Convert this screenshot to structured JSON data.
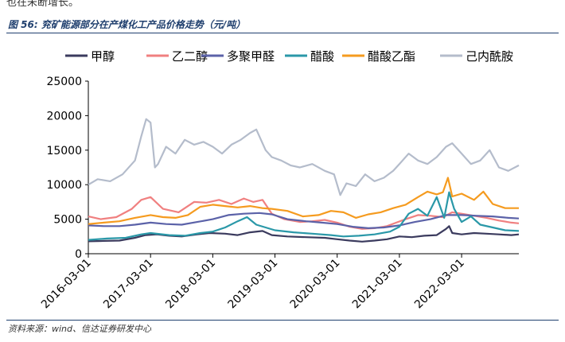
{
  "header": {
    "top_text": "也在未断增长。",
    "figure_title": "图 56:  兖矿能源部分在产煤化工产品价格走势（元/吨）",
    "source": "资料来源：wind、信达证券研发中心"
  },
  "chart_data": {
    "type": "line",
    "title": "兖矿能源部分在产煤化工产品价格走势（元/吨）",
    "xlabel": "",
    "ylabel": "",
    "ylim": [
      0,
      25000
    ],
    "yticks": [
      0,
      5000,
      10000,
      15000,
      20000,
      25000
    ],
    "ytick_labels": [
      "0",
      "5000",
      "10000",
      "15000",
      "20000",
      "25000"
    ],
    "xlim": [
      2016.0,
      2022.92
    ],
    "xtick_labels": [
      "2016-03-01",
      "2017-03-01",
      "2018-03-01",
      "2019-03-01",
      "2020-03-01",
      "2021-03-01",
      "2022-03-01"
    ],
    "xtick_values": [
      2016.0,
      2017.0,
      2018.0,
      2019.0,
      2020.0,
      2021.0,
      2022.0
    ],
    "legend_position": "top",
    "series": [
      {
        "name": "甲醇",
        "color": "#3b3b5e",
        "x": [
          2016.0,
          2016.25,
          2016.5,
          2016.75,
          2016.92,
          2017.1,
          2017.3,
          2017.5,
          2017.75,
          2017.95,
          2018.2,
          2018.4,
          2018.6,
          2018.8,
          2018.95,
          2019.2,
          2019.5,
          2019.8,
          2020.0,
          2020.2,
          2020.4,
          2020.6,
          2020.8,
          2021.0,
          2021.2,
          2021.4,
          2021.6,
          2021.75,
          2021.8,
          2021.85,
          2022.0,
          2022.2,
          2022.4,
          2022.6,
          2022.8,
          2022.92
        ],
        "y": [
          1800,
          1850,
          1900,
          2300,
          2700,
          2800,
          2600,
          2500,
          2800,
          3000,
          2900,
          2700,
          3100,
          3300,
          2700,
          2500,
          2400,
          2300,
          2100,
          1900,
          1750,
          1900,
          2100,
          2500,
          2400,
          2600,
          2700,
          3600,
          4000,
          3000,
          2800,
          3000,
          2900,
          2800,
          2700,
          2800
        ]
      },
      {
        "name": "乙二醇",
        "color": "#f08080",
        "x": [
          2016.0,
          2016.2,
          2016.45,
          2016.7,
          2016.85,
          2017.0,
          2017.2,
          2017.45,
          2017.7,
          2017.9,
          2018.1,
          2018.3,
          2018.5,
          2018.65,
          2018.8,
          2018.95,
          2019.15,
          2019.4,
          2019.6,
          2019.8,
          2020.0,
          2020.2,
          2020.4,
          2020.6,
          2020.8,
          2020.95,
          2021.1,
          2021.3,
          2021.5,
          2021.7,
          2021.85,
          2022.0,
          2022.2,
          2022.4,
          2022.6,
          2022.8,
          2022.92
        ],
        "y": [
          5400,
          5000,
          5300,
          6500,
          7800,
          8200,
          6500,
          6000,
          7500,
          7400,
          7800,
          7200,
          8000,
          7500,
          7800,
          5800,
          5000,
          4600,
          4700,
          4900,
          4500,
          3900,
          3600,
          3700,
          4000,
          4500,
          5000,
          5600,
          5500,
          5300,
          6000,
          5800,
          5500,
          5200,
          4800,
          4500,
          4400
        ]
      },
      {
        "name": "多聚甲醛",
        "color": "#5b62a8",
        "x": [
          2016.0,
          2016.25,
          2016.5,
          2016.75,
          2017.0,
          2017.25,
          2017.5,
          2017.75,
          2018.0,
          2018.25,
          2018.5,
          2018.75,
          2018.95,
          2019.2,
          2019.5,
          2019.75,
          2020.0,
          2020.25,
          2020.5,
          2020.75,
          2021.0,
          2021.25,
          2021.5,
          2021.75,
          2022.0,
          2022.25,
          2022.5,
          2022.75,
          2022.92
        ],
        "y": [
          4100,
          4000,
          4000,
          4200,
          4500,
          4300,
          4200,
          4600,
          5000,
          5600,
          5800,
          5900,
          5700,
          5000,
          4700,
          4500,
          4300,
          3900,
          3700,
          3800,
          4100,
          4600,
          5000,
          5600,
          5600,
          5500,
          5400,
          5200,
          5100
        ]
      },
      {
        "name": "醋酸",
        "color": "#2a98a8",
        "x": [
          2016.0,
          2016.3,
          2016.6,
          2016.85,
          2017.0,
          2017.3,
          2017.55,
          2017.8,
          2018.0,
          2018.2,
          2018.4,
          2018.55,
          2018.7,
          2018.85,
          2019.0,
          2019.3,
          2019.6,
          2019.9,
          2020.1,
          2020.35,
          2020.6,
          2020.85,
          2021.0,
          2021.15,
          2021.3,
          2021.45,
          2021.6,
          2021.72,
          2021.8,
          2021.88,
          2022.0,
          2022.15,
          2022.3,
          2022.5,
          2022.7,
          2022.92
        ],
        "y": [
          2000,
          2200,
          2300,
          2800,
          3000,
          2700,
          2600,
          3000,
          3200,
          3800,
          4700,
          5300,
          4200,
          3800,
          3400,
          3100,
          2900,
          2700,
          2500,
          2600,
          2800,
          3200,
          3900,
          5800,
          6500,
          5500,
          8200,
          5200,
          8900,
          6500,
          4600,
          5400,
          4200,
          3800,
          3400,
          3300
        ]
      },
      {
        "name": "醋酸乙酯",
        "color": "#f59b1f",
        "x": [
          2016.0,
          2016.25,
          2016.5,
          2016.75,
          2017.0,
          2017.2,
          2017.4,
          2017.6,
          2017.8,
          2018.0,
          2018.2,
          2018.4,
          2018.6,
          2018.8,
          2018.95,
          2019.2,
          2019.45,
          2019.7,
          2019.9,
          2020.1,
          2020.3,
          2020.5,
          2020.7,
          2020.9,
          2021.1,
          2021.3,
          2021.45,
          2021.6,
          2021.7,
          2021.78,
          2021.85,
          2022.0,
          2022.2,
          2022.35,
          2022.5,
          2022.7,
          2022.92
        ],
        "y": [
          4300,
          4500,
          4700,
          5200,
          5600,
          5300,
          5200,
          5600,
          6800,
          7100,
          6900,
          6700,
          6900,
          6600,
          6500,
          6200,
          5400,
          5600,
          6200,
          6000,
          5200,
          5700,
          6000,
          6600,
          7100,
          8200,
          9000,
          8600,
          8900,
          11000,
          8300,
          8700,
          7800,
          9000,
          7200,
          6600,
          6600
        ]
      },
      {
        "name": "己内酰胺",
        "color": "#b4bccb",
        "x": [
          2016.0,
          2016.15,
          2016.35,
          2016.55,
          2016.75,
          2016.85,
          2016.93,
          2017.0,
          2017.07,
          2017.12,
          2017.25,
          2017.4,
          2017.55,
          2017.7,
          2017.85,
          2018.0,
          2018.15,
          2018.3,
          2018.45,
          2018.6,
          2018.7,
          2018.85,
          2018.95,
          2019.1,
          2019.25,
          2019.4,
          2019.6,
          2019.8,
          2019.95,
          2020.05,
          2020.15,
          2020.3,
          2020.45,
          2020.6,
          2020.75,
          2020.9,
          2021.0,
          2021.15,
          2021.3,
          2021.45,
          2021.6,
          2021.75,
          2021.85,
          2022.0,
          2022.15,
          2022.3,
          2022.45,
          2022.6,
          2022.75,
          2022.92
        ],
        "y": [
          10000,
          10800,
          10500,
          11500,
          13500,
          17000,
          19500,
          19000,
          12500,
          13000,
          15500,
          14500,
          16500,
          15800,
          16200,
          15500,
          14500,
          15800,
          16500,
          17500,
          18000,
          15000,
          14000,
          13500,
          12800,
          12500,
          13000,
          12000,
          11500,
          8500,
          10200,
          9800,
          11500,
          10500,
          11000,
          12000,
          13000,
          14500,
          13500,
          13000,
          14000,
          15500,
          16000,
          14500,
          13000,
          13500,
          15000,
          12500,
          12000,
          12800
        ]
      }
    ]
  }
}
